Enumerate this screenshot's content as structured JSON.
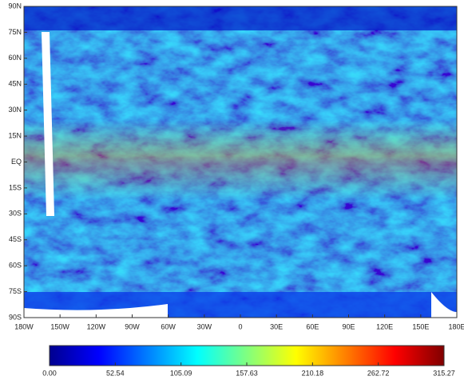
{
  "map": {
    "lat_ticks": [
      {
        "value": 90,
        "label": "90N"
      },
      {
        "value": 75,
        "label": "75N"
      },
      {
        "value": 60,
        "label": "60N"
      },
      {
        "value": 45,
        "label": "45N"
      },
      {
        "value": 30,
        "label": "30N"
      },
      {
        "value": 15,
        "label": "15N"
      },
      {
        "value": 0,
        "label": "EQ"
      },
      {
        "value": -15,
        "label": "15S"
      },
      {
        "value": -30,
        "label": "30S"
      },
      {
        "value": -45,
        "label": "45S"
      },
      {
        "value": -60,
        "label": "60S"
      },
      {
        "value": -75,
        "label": "75S"
      },
      {
        "value": -90,
        "label": "90S"
      }
    ],
    "lon_ticks": [
      {
        "value": -180,
        "label": "180W"
      },
      {
        "value": -150,
        "label": "150W"
      },
      {
        "value": -120,
        "label": "120W"
      },
      {
        "value": -90,
        "label": "90W"
      },
      {
        "value": -60,
        "label": "60W"
      },
      {
        "value": -30,
        "label": "30W"
      },
      0,
      {
        "value": 30,
        "label": "30E"
      },
      {
        "value": 60,
        "label": "60E"
      },
      {
        "value": 90,
        "label": "90E"
      },
      {
        "value": 120,
        "label": "120E"
      },
      {
        "value": 150,
        "label": "150E"
      },
      {
        "value": 180,
        "label": "180E"
      }
    ],
    "colorbar": {
      "lim": [
        0,
        315.27
      ],
      "ticks": [
        {
          "value": 0,
          "label": "0.00"
        },
        52.54,
        105.09,
        157.63,
        210.18,
        262.72,
        315.27
      ],
      "colors": [
        "#00008f",
        "#0000ff",
        "#0080ff",
        "#00ffff",
        "#80ff80",
        "#ffff00",
        "#ff8000",
        "#ff0000",
        "#800000"
      ]
    }
  }
}
